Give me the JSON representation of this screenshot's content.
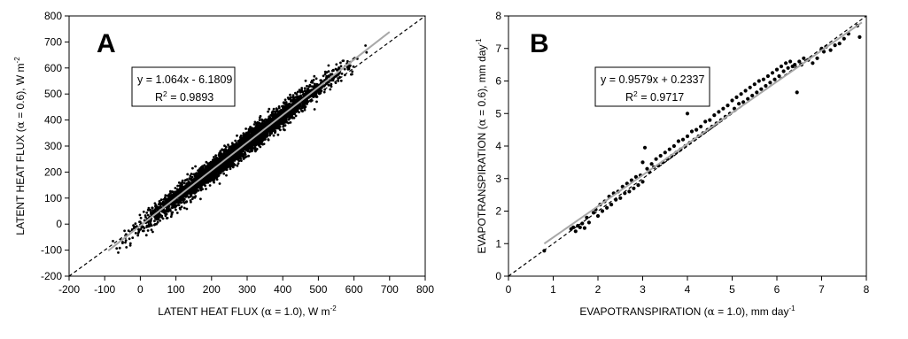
{
  "chart_data": [
    {
      "type": "scatter",
      "panel_letter": "A",
      "title": "",
      "xlabel_main": "LATENT HEAT FLUX (",
      "xlabel_symbol": "α",
      "xlabel_mid": " = 1.0), W m",
      "xlabel_sup": "-2",
      "ylabel_main": "LATENT HEAT FLUX (",
      "ylabel_symbol": "α",
      "ylabel_mid": " = 0.6), W m",
      "ylabel_sup": "-2",
      "xlim": [
        -200,
        800
      ],
      "ylim": [
        -200,
        800
      ],
      "x_ticks": [
        "-200",
        "-100",
        "0",
        "100",
        "200",
        "300",
        "400",
        "500",
        "600",
        "700",
        "800"
      ],
      "y_ticks": [
        "-200",
        "-100",
        "0",
        "100",
        "200",
        "300",
        "400",
        "500",
        "600",
        "700",
        "800"
      ],
      "grid": false,
      "equation": "y = 1.064x - 6.1809",
      "r2_label": "R",
      "r2_sup": "2",
      "r2_value": " = 0.9893",
      "one_to_one_line": {
        "x": [
          -200,
          800
        ],
        "y": [
          -200,
          800
        ]
      },
      "regression_line": {
        "x": [
          -90,
          700
        ],
        "y": [
          -101.9,
          738.6
        ],
        "slope": 1.064,
        "intercept": -6.1809
      },
      "cloud": {
        "x_min": -90,
        "x_max": 650,
        "slope": 1.064,
        "intercept": -6.1809,
        "spread_sd": 22
      },
      "colors": {
        "points": "#000000",
        "regression": "#a8a8a8",
        "identity": "#000000"
      }
    },
    {
      "type": "scatter",
      "panel_letter": "B",
      "title": "",
      "xlabel_main": "EVAPOTRANSPIRATION (",
      "xlabel_symbol": "α",
      "xlabel_mid": " = 1.0), mm day",
      "xlabel_sup": "-1",
      "ylabel_main": "EVAPOTRANSPIRATION (",
      "ylabel_symbol": "α",
      "ylabel_mid": " = 0.6), mm day",
      "ylabel_sup": "-1",
      "xlim": [
        0,
        8
      ],
      "ylim": [
        0,
        8
      ],
      "x_ticks": [
        "0",
        "1",
        "2",
        "3",
        "4",
        "5",
        "6",
        "7",
        "8"
      ],
      "y_ticks": [
        "0",
        "1",
        "2",
        "3",
        "4",
        "5",
        "6",
        "7",
        "8"
      ],
      "grid": false,
      "equation": "y = 0.9579x + 0.2337",
      "r2_label": "R",
      "r2_sup": "2",
      "r2_value": " = 0.9717",
      "one_to_one_line": {
        "x": [
          0,
          8
        ],
        "y": [
          0,
          8
        ]
      },
      "regression_line": {
        "x": [
          0.8,
          7.9
        ],
        "y": [
          1.0,
          7.8
        ],
        "slope": 0.9579,
        "intercept": 0.2337
      },
      "points": [
        [
          0.8,
          0.78
        ],
        [
          1.4,
          1.45
        ],
        [
          1.45,
          1.5
        ],
        [
          1.5,
          1.38
        ],
        [
          1.55,
          1.55
        ],
        [
          1.6,
          1.5
        ],
        [
          1.65,
          1.62
        ],
        [
          1.7,
          1.48
        ],
        [
          1.75,
          1.8
        ],
        [
          1.8,
          1.65
        ],
        [
          1.9,
          1.95
        ],
        [
          1.95,
          2.05
        ],
        [
          2.0,
          1.85
        ],
        [
          2.05,
          2.2
        ],
        [
          2.1,
          2.0
        ],
        [
          2.15,
          2.3
        ],
        [
          2.2,
          2.1
        ],
        [
          2.25,
          2.45
        ],
        [
          2.3,
          2.2
        ],
        [
          2.35,
          2.55
        ],
        [
          2.4,
          2.35
        ],
        [
          2.45,
          2.6
        ],
        [
          2.5,
          2.4
        ],
        [
          2.55,
          2.75
        ],
        [
          2.6,
          2.55
        ],
        [
          2.65,
          2.85
        ],
        [
          2.7,
          2.6
        ],
        [
          2.75,
          2.95
        ],
        [
          2.8,
          2.7
        ],
        [
          2.85,
          3.05
        ],
        [
          2.9,
          2.8
        ],
        [
          2.95,
          3.1
        ],
        [
          3.0,
          2.9
        ],
        [
          3.0,
          3.5
        ],
        [
          3.05,
          3.95
        ],
        [
          3.1,
          3.3
        ],
        [
          3.15,
          3.2
        ],
        [
          3.2,
          3.45
        ],
        [
          3.25,
          3.35
        ],
        [
          3.3,
          3.6
        ],
        [
          3.35,
          3.4
        ],
        [
          3.4,
          3.7
        ],
        [
          3.45,
          3.5
        ],
        [
          3.5,
          3.8
        ],
        [
          3.55,
          3.6
        ],
        [
          3.6,
          3.9
        ],
        [
          3.65,
          3.7
        ],
        [
          3.7,
          4.0
        ],
        [
          3.75,
          3.8
        ],
        [
          3.8,
          4.15
        ],
        [
          3.85,
          3.9
        ],
        [
          3.9,
          4.2
        ],
        [
          3.95,
          4.0
        ],
        [
          4.0,
          5.0
        ],
        [
          4.0,
          4.3
        ],
        [
          4.05,
          4.1
        ],
        [
          4.1,
          4.45
        ],
        [
          4.15,
          4.2
        ],
        [
          4.2,
          4.5
        ],
        [
          4.25,
          4.3
        ],
        [
          4.3,
          4.6
        ],
        [
          4.35,
          4.4
        ],
        [
          4.4,
          4.75
        ],
        [
          4.45,
          4.5
        ],
        [
          4.5,
          4.8
        ],
        [
          4.55,
          4.6
        ],
        [
          4.6,
          4.95
        ],
        [
          4.65,
          4.7
        ],
        [
          4.7,
          5.05
        ],
        [
          4.75,
          4.8
        ],
        [
          4.8,
          5.15
        ],
        [
          4.85,
          4.9
        ],
        [
          4.9,
          5.25
        ],
        [
          4.95,
          5.0
        ],
        [
          5.0,
          5.4
        ],
        [
          5.05,
          5.15
        ],
        [
          5.1,
          5.5
        ],
        [
          5.15,
          5.3
        ],
        [
          5.2,
          5.6
        ],
        [
          5.25,
          5.35
        ],
        [
          5.3,
          5.7
        ],
        [
          5.35,
          5.45
        ],
        [
          5.4,
          5.8
        ],
        [
          5.45,
          5.55
        ],
        [
          5.5,
          5.9
        ],
        [
          5.55,
          5.65
        ],
        [
          5.6,
          6.0
        ],
        [
          5.65,
          5.75
        ],
        [
          5.7,
          6.05
        ],
        [
          5.75,
          5.85
        ],
        [
          5.8,
          6.15
        ],
        [
          5.85,
          5.95
        ],
        [
          5.9,
          6.25
        ],
        [
          5.95,
          6.05
        ],
        [
          6.0,
          6.35
        ],
        [
          6.05,
          6.15
        ],
        [
          6.1,
          6.45
        ],
        [
          6.15,
          6.3
        ],
        [
          6.2,
          6.55
        ],
        [
          6.25,
          6.4
        ],
        [
          6.3,
          6.6
        ],
        [
          6.35,
          6.45
        ],
        [
          6.4,
          6.5
        ],
        [
          6.45,
          5.65
        ],
        [
          6.5,
          6.6
        ],
        [
          6.55,
          6.5
        ],
        [
          6.6,
          6.7
        ],
        [
          6.7,
          6.65
        ],
        [
          6.8,
          6.55
        ],
        [
          6.9,
          6.7
        ],
        [
          7.0,
          7.0
        ],
        [
          7.05,
          6.9
        ],
        [
          7.1,
          7.05
        ],
        [
          7.2,
          6.95
        ],
        [
          7.3,
          7.1
        ],
        [
          7.4,
          7.15
        ],
        [
          7.5,
          7.3
        ],
        [
          7.6,
          7.45
        ],
        [
          7.8,
          7.7
        ],
        [
          7.85,
          7.35
        ]
      ],
      "colors": {
        "points": "#000000",
        "regression": "#a8a8a8",
        "identity": "#000000"
      }
    }
  ]
}
